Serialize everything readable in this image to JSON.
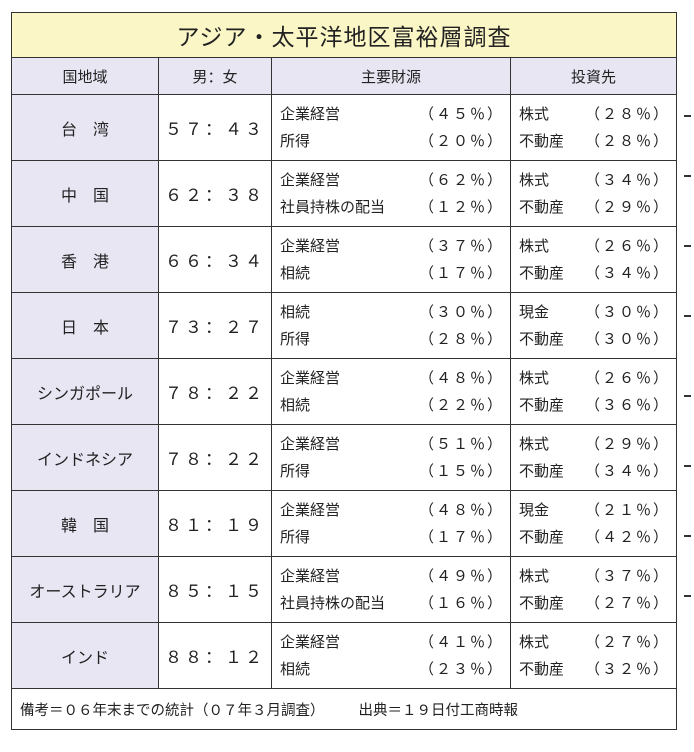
{
  "title": "アジア・太平洋地区富裕層調査",
  "headers": {
    "region": "国地域",
    "ratio": "男：女",
    "sources": "主要財源",
    "investment": "投資先"
  },
  "rows": [
    {
      "region": "台　湾",
      "ratio": "５７：４３",
      "src1": "企業経営",
      "src1_pct": "（４５％）",
      "src2": "所得",
      "src2_pct": "（２０％）",
      "inv1": "株式",
      "inv1_pct": "（２８％）",
      "inv2": "不動産",
      "inv2_pct": "（２８％）"
    },
    {
      "region": "中　国",
      "ratio": "６２：３８",
      "src1": "企業経営",
      "src1_pct": "（６２％）",
      "src2": "社員持株の配当",
      "src2_pct": "（１２％）",
      "inv1": "株式",
      "inv1_pct": "（３４％）",
      "inv2": "不動産",
      "inv2_pct": "（２９％）"
    },
    {
      "region": "香　港",
      "ratio": "６６：３４",
      "src1": "企業経営",
      "src1_pct": "（３７％）",
      "src2": "相続",
      "src2_pct": "（１７％）",
      "inv1": "株式",
      "inv1_pct": "（２６％）",
      "inv2": "不動産",
      "inv2_pct": "（３４％）"
    },
    {
      "region": "日　本",
      "ratio": "７３：２７",
      "src1": "相続",
      "src1_pct": "（３０％）",
      "src2": "所得",
      "src2_pct": "（２８％）",
      "inv1": "現金",
      "inv1_pct": "（３０％）",
      "inv2": "不動産",
      "inv2_pct": "（３０％）"
    },
    {
      "region": "シンガポール",
      "ratio": "７８：２２",
      "src1": "企業経営",
      "src1_pct": "（４８％）",
      "src2": "相続",
      "src2_pct": "（２２％）",
      "inv1": "株式",
      "inv1_pct": "（２６％）",
      "inv2": "不動産",
      "inv2_pct": "（３６％）"
    },
    {
      "region": "インドネシア",
      "ratio": "７８：２２",
      "src1": "企業経営",
      "src1_pct": "（５１％）",
      "src2": "所得",
      "src2_pct": "（１５％）",
      "inv1": "株式",
      "inv1_pct": "（２９％）",
      "inv2": "不動産",
      "inv2_pct": "（３４％）"
    },
    {
      "region": "韓　国",
      "ratio": "８１：１９",
      "src1": "企業経営",
      "src1_pct": "（４８％）",
      "src2": "所得",
      "src2_pct": "（１７％）",
      "inv1": "現金",
      "inv1_pct": "（２１％）",
      "inv2": "不動産",
      "inv2_pct": "（４２％）"
    },
    {
      "region": "オーストラリア",
      "ratio": "８５：１５",
      "src1": "企業経営",
      "src1_pct": "（４９％）",
      "src2": "社員持株の配当",
      "src2_pct": "（１６％）",
      "inv1": "株式",
      "inv1_pct": "（３７％）",
      "inv2": "不動産",
      "inv2_pct": "（２７％）"
    },
    {
      "region": "インド",
      "ratio": "８８：１２",
      "src1": "企業経営",
      "src1_pct": "（４１％）",
      "src2": "相続",
      "src2_pct": "（２３％）",
      "inv1": "株式",
      "inv1_pct": "（２７％）",
      "inv2": "不動産",
      "inv2_pct": "（３２％）"
    }
  ],
  "footer": {
    "note": "備考＝０６年末までの統計（０７年３月調査）",
    "source": "出典＝１９日付工商時報"
  },
  "colors": {
    "title_bg": "#fbf6c6",
    "header_bg": "#e8e6f3",
    "border": "#333333"
  }
}
